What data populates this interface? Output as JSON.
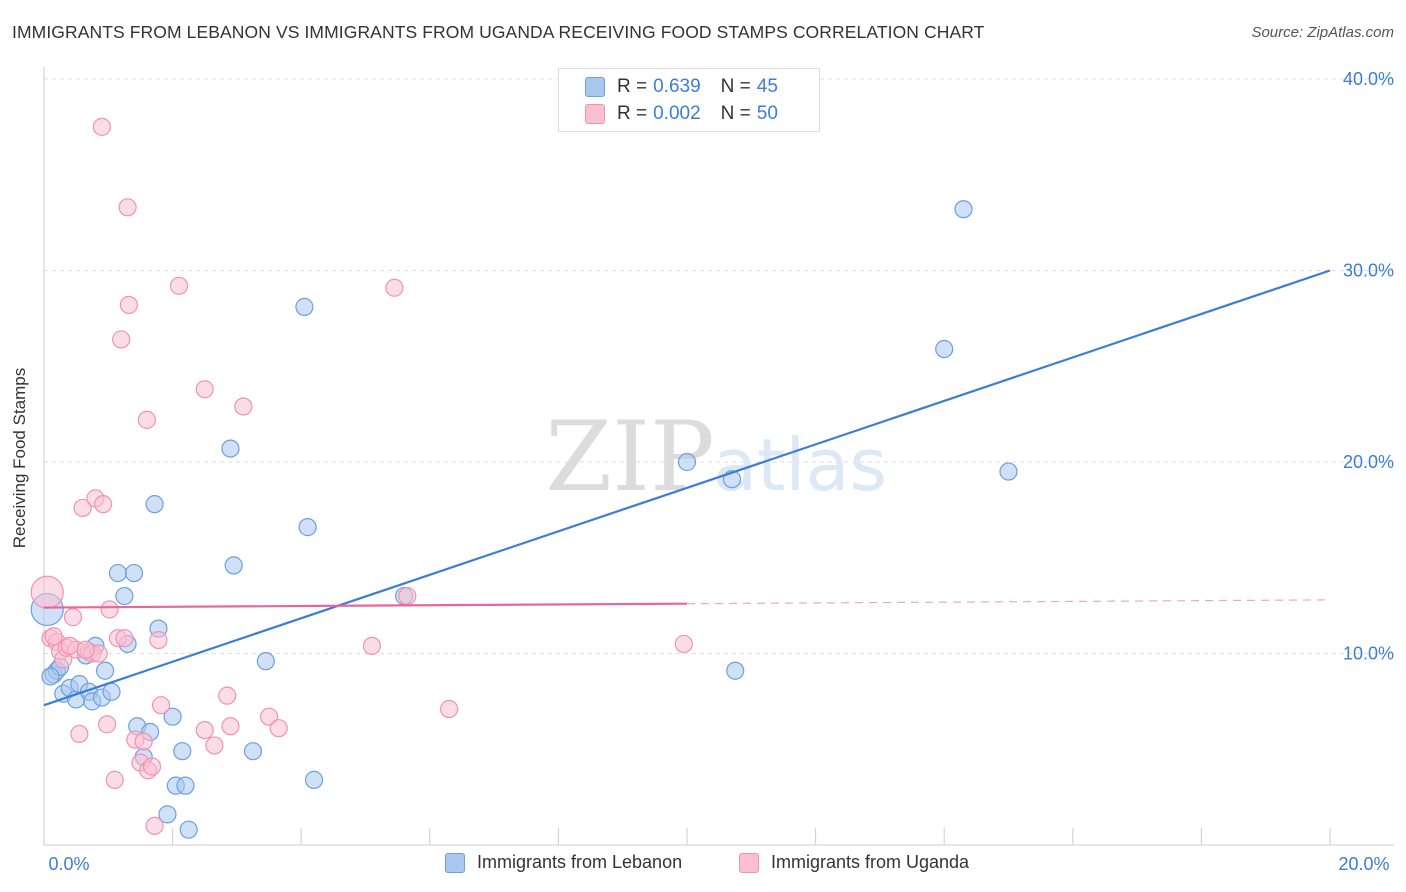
{
  "header": {
    "title": "IMMIGRANTS FROM LEBANON VS IMMIGRANTS FROM UGANDA RECEIVING FOOD STAMPS CORRELATION CHART",
    "source": "Source: ZipAtlas.com"
  },
  "watermark": {
    "zip": "ZIP",
    "atlas": "atlas"
  },
  "legend": {
    "series": [
      {
        "r_label": "R =",
        "r_value": "0.639",
        "n_label": "N =",
        "n_value": "45",
        "color": "#a9c8f0",
        "border": "#6d9fdf"
      },
      {
        "r_label": "R =",
        "r_value": "0.002",
        "n_label": "N =",
        "n_value": "50",
        "color": "#f9c0d2",
        "border": "#ef93b1"
      }
    ]
  },
  "bottom_legend": {
    "items": [
      {
        "label": "Immigrants from Lebanon",
        "color": "#a9c8f0",
        "border": "#6d9fdf"
      },
      {
        "label": "Immigrants from Uganda",
        "color": "#f9c0d2",
        "border": "#ef93b1"
      }
    ]
  },
  "chart_data": {
    "type": "scatter",
    "title": "IMMIGRANTS FROM LEBANON VS IMMIGRANTS FROM UGANDA RECEIVING FOOD STAMPS CORRELATION CHART",
    "xlabel": "",
    "ylabel": "Receiving Food Stamps",
    "xlim": [
      0,
      20
    ],
    "ylim": [
      0,
      40
    ],
    "x_tick_labels": [
      "0.0%",
      "20.0%"
    ],
    "y_tick_labels": [
      "10.0%",
      "20.0%",
      "30.0%",
      "40.0%"
    ],
    "y_ticks": [
      10,
      20,
      30,
      40
    ],
    "grid": true,
    "series": [
      {
        "name": "Immigrants from Lebanon",
        "color": "#6d9fdf",
        "fill": "#a9c8f0",
        "trend": {
          "x": [
            0,
            20
          ],
          "y": [
            7.3,
            30.0
          ],
          "color": "#3b7dd8"
        },
        "points": [
          {
            "x": 0.05,
            "y": 12.3,
            "big": true
          },
          {
            "x": 0.15,
            "y": 8.9
          },
          {
            "x": 0.2,
            "y": 9.1
          },
          {
            "x": 0.25,
            "y": 9.3
          },
          {
            "x": 0.3,
            "y": 7.9
          },
          {
            "x": 0.4,
            "y": 8.2
          },
          {
            "x": 0.5,
            "y": 7.6
          },
          {
            "x": 0.55,
            "y": 8.4
          },
          {
            "x": 0.65,
            "y": 9.9
          },
          {
            "x": 0.7,
            "y": 8.0
          },
          {
            "x": 0.75,
            "y": 7.5
          },
          {
            "x": 0.8,
            "y": 10.4
          },
          {
            "x": 0.9,
            "y": 7.7
          },
          {
            "x": 0.95,
            "y": 9.1
          },
          {
            "x": 1.05,
            "y": 8.0
          },
          {
            "x": 1.15,
            "y": 14.2
          },
          {
            "x": 1.25,
            "y": 13.0
          },
          {
            "x": 1.3,
            "y": 10.5
          },
          {
            "x": 1.4,
            "y": 14.2
          },
          {
            "x": 1.45,
            "y": 6.2
          },
          {
            "x": 1.55,
            "y": 4.6
          },
          {
            "x": 1.65,
            "y": 5.9
          },
          {
            "x": 1.72,
            "y": 17.8
          },
          {
            "x": 1.78,
            "y": 11.3
          },
          {
            "x": 1.92,
            "y": 1.6
          },
          {
            "x": 2.0,
            "y": 6.7
          },
          {
            "x": 2.05,
            "y": 3.1
          },
          {
            "x": 2.15,
            "y": 4.9
          },
          {
            "x": 2.2,
            "y": 3.1
          },
          {
            "x": 2.25,
            "y": 0.8
          },
          {
            "x": 2.9,
            "y": 20.7
          },
          {
            "x": 2.95,
            "y": 14.6
          },
          {
            "x": 3.25,
            "y": 4.9
          },
          {
            "x": 3.45,
            "y": 9.6
          },
          {
            "x": 4.05,
            "y": 28.1
          },
          {
            "x": 4.1,
            "y": 16.6
          },
          {
            "x": 4.2,
            "y": 3.4
          },
          {
            "x": 5.6,
            "y": 13.0
          },
          {
            "x": 10.0,
            "y": 20.0
          },
          {
            "x": 10.7,
            "y": 19.1
          },
          {
            "x": 10.75,
            "y": 9.1
          },
          {
            "x": 14.0,
            "y": 25.9
          },
          {
            "x": 14.3,
            "y": 33.2
          },
          {
            "x": 15.0,
            "y": 19.5
          },
          {
            "x": 0.1,
            "y": 8.8
          }
        ]
      },
      {
        "name": "Immigrants from Uganda",
        "color": "#ef93b1",
        "fill": "#f9c0d2",
        "trend": {
          "x": [
            0,
            10
          ],
          "y": [
            12.4,
            12.6
          ],
          "dashed_to": 20,
          "dashed_y": 12.8,
          "color": "#e8679a"
        },
        "points": [
          {
            "x": 0.05,
            "y": 13.2,
            "big": true
          },
          {
            "x": 0.1,
            "y": 10.8
          },
          {
            "x": 0.2,
            "y": 10.6
          },
          {
            "x": 0.25,
            "y": 10.1
          },
          {
            "x": 0.3,
            "y": 9.7
          },
          {
            "x": 0.35,
            "y": 10.3
          },
          {
            "x": 0.45,
            "y": 11.9
          },
          {
            "x": 0.5,
            "y": 10.2
          },
          {
            "x": 0.55,
            "y": 5.8
          },
          {
            "x": 0.6,
            "y": 17.6
          },
          {
            "x": 0.7,
            "y": 10.1
          },
          {
            "x": 0.75,
            "y": 10.0
          },
          {
            "x": 0.8,
            "y": 18.1
          },
          {
            "x": 0.85,
            "y": 10.0
          },
          {
            "x": 0.9,
            "y": 37.5
          },
          {
            "x": 0.92,
            "y": 17.8
          },
          {
            "x": 0.98,
            "y": 6.3
          },
          {
            "x": 1.02,
            "y": 12.3
          },
          {
            "x": 1.1,
            "y": 3.4
          },
          {
            "x": 1.15,
            "y": 10.8
          },
          {
            "x": 1.2,
            "y": 26.4
          },
          {
            "x": 1.25,
            "y": 10.8
          },
          {
            "x": 1.3,
            "y": 33.3
          },
          {
            "x": 1.32,
            "y": 28.2
          },
          {
            "x": 1.42,
            "y": 5.5
          },
          {
            "x": 1.5,
            "y": 4.3
          },
          {
            "x": 1.55,
            "y": 5.4
          },
          {
            "x": 1.6,
            "y": 22.2
          },
          {
            "x": 1.62,
            "y": 3.9
          },
          {
            "x": 1.68,
            "y": 4.1
          },
          {
            "x": 1.72,
            "y": 1.0
          },
          {
            "x": 1.78,
            "y": 10.7
          },
          {
            "x": 1.82,
            "y": 7.3
          },
          {
            "x": 2.1,
            "y": 29.2
          },
          {
            "x": 2.5,
            "y": 6.0
          },
          {
            "x": 2.5,
            "y": 23.8
          },
          {
            "x": 2.65,
            "y": 5.2
          },
          {
            "x": 2.85,
            "y": 7.8
          },
          {
            "x": 2.9,
            "y": 6.2
          },
          {
            "x": 3.1,
            "y": 22.9
          },
          {
            "x": 3.5,
            "y": 6.7
          },
          {
            "x": 3.65,
            "y": 6.1
          },
          {
            "x": 5.1,
            "y": 10.4
          },
          {
            "x": 5.45,
            "y": 29.1
          },
          {
            "x": 5.65,
            "y": 13.0
          },
          {
            "x": 6.3,
            "y": 7.1
          },
          {
            "x": 9.95,
            "y": 10.5
          },
          {
            "x": 0.15,
            "y": 10.9
          },
          {
            "x": 0.4,
            "y": 10.4
          },
          {
            "x": 0.65,
            "y": 10.2
          }
        ]
      }
    ]
  }
}
